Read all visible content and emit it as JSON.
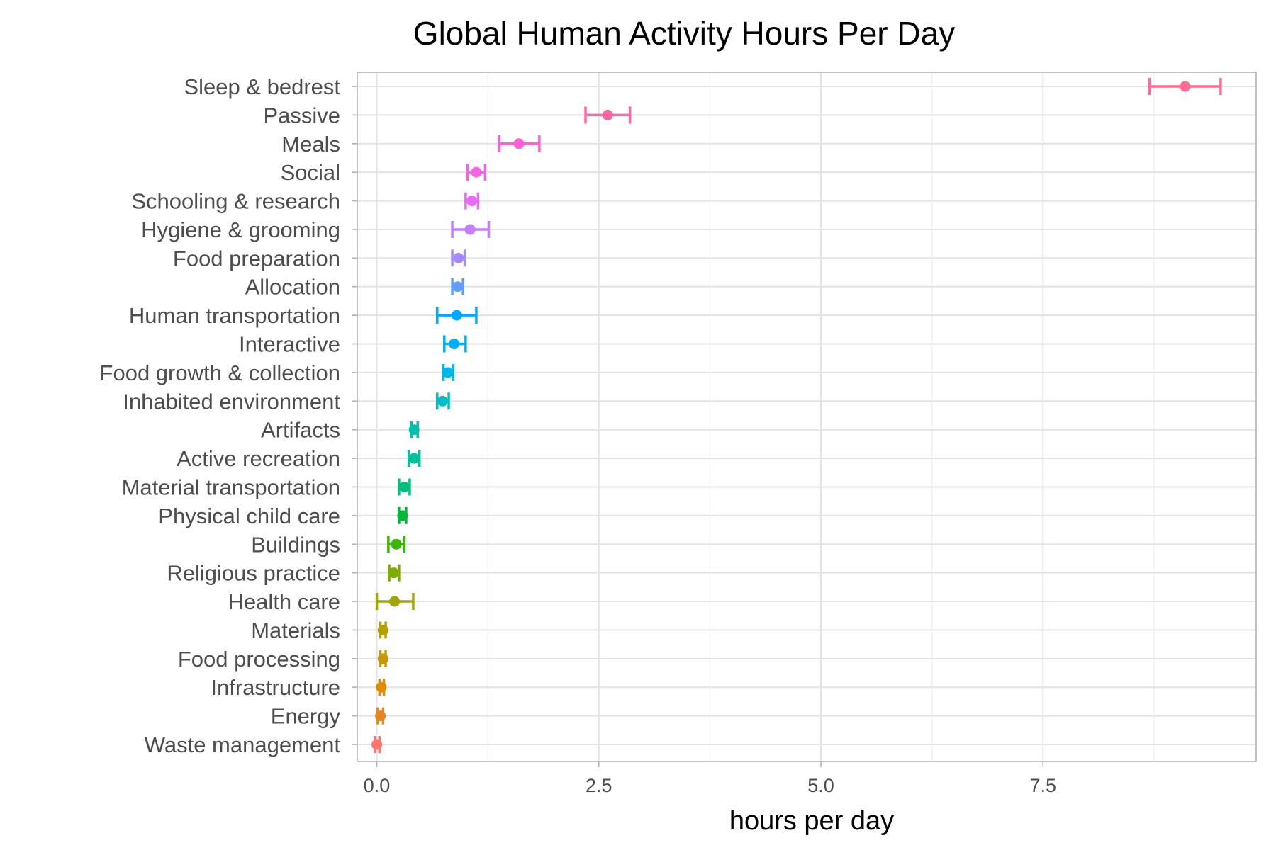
{
  "chart_data": {
    "type": "scatter",
    "subtype": "point-range with error bars",
    "title": "Global Human Activity Hours Per Day",
    "xlabel": "hours per day",
    "ylabel": "",
    "xlim": [
      -0.22,
      9.9
    ],
    "x_ticks": [
      0.0,
      2.5,
      5.0,
      7.5
    ],
    "x_tick_labels": [
      "0.0",
      "2.5",
      "5.0",
      "7.5"
    ],
    "grid": true,
    "legend": "none",
    "categories": [
      "Sleep & bedrest",
      "Passive",
      "Meals",
      "Social",
      "Schooling & research",
      "Hygiene & grooming",
      "Food preparation",
      "Allocation",
      "Human transportation",
      "Interactive",
      "Food growth & collection",
      "Inhabited environment",
      "Artifacts",
      "Active recreation",
      "Material transportation",
      "Physical child care",
      "Buildings",
      "Religious practice",
      "Health care",
      "Materials",
      "Food processing",
      "Infrastructure",
      "Energy",
      "Waste management"
    ],
    "points": [
      {
        "category": "Sleep & bedrest",
        "value": 9.1,
        "low": 8.7,
        "high": 9.5,
        "color": "#FF6C91"
      },
      {
        "category": "Passive",
        "value": 2.6,
        "low": 2.35,
        "high": 2.85,
        "color": "#FF66A8"
      },
      {
        "category": "Meals",
        "value": 1.6,
        "low": 1.38,
        "high": 1.83,
        "color": "#FB61D7"
      },
      {
        "category": "Social",
        "value": 1.12,
        "low": 1.02,
        "high": 1.22,
        "color": "#F564E3"
      },
      {
        "category": "Schooling & research",
        "value": 1.07,
        "low": 1.0,
        "high": 1.14,
        "color": "#E76BF3"
      },
      {
        "category": "Hygiene & grooming",
        "value": 1.05,
        "low": 0.85,
        "high": 1.26,
        "color": "#C77CFF"
      },
      {
        "category": "Food preparation",
        "value": 0.92,
        "low": 0.85,
        "high": 0.99,
        "color": "#A58AFF"
      },
      {
        "category": "Allocation",
        "value": 0.91,
        "low": 0.85,
        "high": 0.97,
        "color": "#619CFF"
      },
      {
        "category": "Human transportation",
        "value": 0.9,
        "low": 0.68,
        "high": 1.12,
        "color": "#00A9FF"
      },
      {
        "category": "Interactive",
        "value": 0.87,
        "low": 0.76,
        "high": 1.0,
        "color": "#00B0F6"
      },
      {
        "category": "Food growth & collection",
        "value": 0.8,
        "low": 0.75,
        "high": 0.86,
        "color": "#00B8E7"
      },
      {
        "category": "Inhabited environment",
        "value": 0.74,
        "low": 0.68,
        "high": 0.81,
        "color": "#00BFC4"
      },
      {
        "category": "Artifacts",
        "value": 0.42,
        "low": 0.39,
        "high": 0.46,
        "color": "#00C0AF"
      },
      {
        "category": "Active recreation",
        "value": 0.42,
        "low": 0.36,
        "high": 0.48,
        "color": "#00C19A"
      },
      {
        "category": "Material transportation",
        "value": 0.31,
        "low": 0.25,
        "high": 0.37,
        "color": "#00BF7D"
      },
      {
        "category": "Physical child care",
        "value": 0.29,
        "low": 0.25,
        "high": 0.33,
        "color": "#00BA38"
      },
      {
        "category": "Buildings",
        "value": 0.22,
        "low": 0.13,
        "high": 0.31,
        "color": "#39B600"
      },
      {
        "category": "Religious practice",
        "value": 0.19,
        "low": 0.14,
        "high": 0.25,
        "color": "#7CAE00"
      },
      {
        "category": "Health care",
        "value": 0.2,
        "low": 0.0,
        "high": 0.41,
        "color": "#A3A500"
      },
      {
        "category": "Materials",
        "value": 0.07,
        "low": 0.04,
        "high": 0.1,
        "color": "#B79F00"
      },
      {
        "category": "Food processing",
        "value": 0.07,
        "low": 0.04,
        "high": 0.1,
        "color": "#C99800"
      },
      {
        "category": "Infrastructure",
        "value": 0.05,
        "low": 0.03,
        "high": 0.08,
        "color": "#DE8C00"
      },
      {
        "category": "Energy",
        "value": 0.04,
        "low": 0.01,
        "high": 0.07,
        "color": "#E7851E"
      },
      {
        "category": "Waste management",
        "value": 0.0,
        "low": -0.02,
        "high": 0.03,
        "color": "#F8766D"
      }
    ]
  }
}
